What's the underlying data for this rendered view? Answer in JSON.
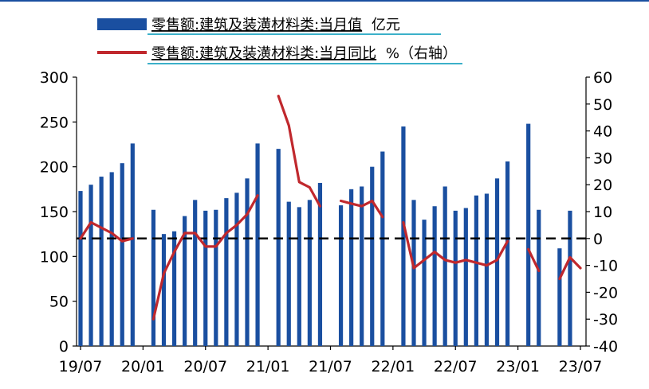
{
  "chart_data": {
    "type": "bar+line",
    "series": [
      {
        "name": "零售额:建筑及装潢材料类:当月值",
        "unit": "亿元",
        "kind": "bar",
        "axis": "left",
        "color": "#1a4fa0",
        "values": [
          173,
          180,
          189,
          194,
          204,
          226,
          null,
          152,
          125,
          128,
          145,
          163,
          151,
          152,
          165,
          171,
          187,
          226,
          null,
          220,
          161,
          155,
          163,
          182,
          null,
          157,
          175,
          178,
          200,
          217,
          null,
          245,
          163,
          141,
          156,
          178,
          151,
          154,
          168,
          170,
          187,
          206,
          null,
          248,
          152,
          null,
          109,
          151,
          null
        ]
      },
      {
        "name": "零售额:建筑及装潢材料类:当月同比",
        "unit": "%（右轴）",
        "kind": "line",
        "axis": "right",
        "color": "#c0282d",
        "values": [
          0,
          6,
          4,
          2,
          -1,
          0,
          null,
          -30,
          -13,
          -5,
          2,
          2,
          -3,
          -3,
          2,
          5,
          9,
          16,
          null,
          53,
          42,
          21,
          19,
          12,
          null,
          14,
          13,
          12,
          14,
          8,
          null,
          6,
          -11,
          -8,
          -5,
          -8,
          -9,
          -8,
          -9,
          -10,
          -8,
          -1,
          null,
          -4,
          -12,
          null,
          -15,
          -7,
          -11
        ]
      }
    ],
    "x_tick_labels": [
      "19/07",
      "20/01",
      "20/07",
      "21/01",
      "21/07",
      "22/01",
      "22/07",
      "23/01",
      "23/07"
    ],
    "left_axis": {
      "ticks": [
        "300",
        "250",
        "200",
        "150",
        "100",
        "50",
        "0"
      ],
      "ylim": [
        0,
        300
      ]
    },
    "right_axis": {
      "ticks": [
        "60",
        "50",
        "40",
        "30",
        "20",
        "10",
        "0",
        "-10",
        "-20",
        "-30",
        "-40"
      ],
      "ylim": [
        -40,
        60
      ]
    },
    "reference_line": {
      "axis": "right",
      "value": 0,
      "style": "dashed"
    },
    "legend": {
      "placement": "top-center"
    }
  }
}
